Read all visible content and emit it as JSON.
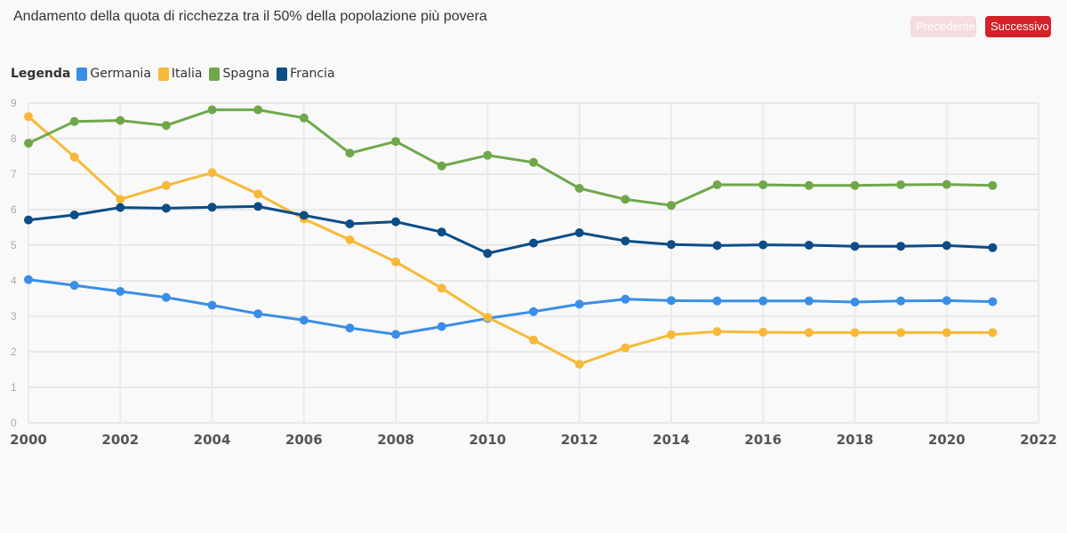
{
  "header": {
    "title": "Andamento della quota di ricchezza tra il 50% della popolazione più povera",
    "prev_label": "Precedente",
    "next_label": "Successivo"
  },
  "legend": {
    "title": "Legenda"
  },
  "colors": {
    "Germania": "#3a8ee6",
    "Italia": "#f8b938",
    "Spagna": "#6fa84b",
    "Francia": "#0a4d87",
    "accent": "#d3222a"
  },
  "chart_data": {
    "type": "line",
    "title": "Andamento della quota di ricchezza tra il 50% della popolazione più povera",
    "xlabel": "",
    "ylabel": "",
    "xlim": [
      2000,
      2022
    ],
    "ylim": [
      0,
      9
    ],
    "x_ticks": [
      2000,
      2002,
      2004,
      2006,
      2008,
      2010,
      2012,
      2014,
      2016,
      2018,
      2020,
      2022
    ],
    "y_ticks": [
      0,
      1,
      2,
      3,
      4,
      5,
      6,
      7,
      8,
      9
    ],
    "grid": true,
    "legend_position": "top-left",
    "x": [
      2000,
      2001,
      2002,
      2003,
      2004,
      2005,
      2006,
      2007,
      2008,
      2009,
      2010,
      2011,
      2012,
      2013,
      2014,
      2015,
      2016,
      2017,
      2018,
      2019,
      2020,
      2021
    ],
    "series": [
      {
        "name": "Germania",
        "values": [
          4.03,
          3.87,
          3.7,
          3.53,
          3.31,
          3.07,
          2.89,
          2.67,
          2.49,
          2.71,
          2.94,
          3.13,
          3.34,
          3.48,
          3.44,
          3.43,
          3.43,
          3.43,
          3.4,
          3.43,
          3.44,
          3.41
        ]
      },
      {
        "name": "Italia",
        "values": [
          8.62,
          7.48,
          6.29,
          6.68,
          7.04,
          6.44,
          5.74,
          5.15,
          4.53,
          3.79,
          2.97,
          2.33,
          1.65,
          2.11,
          2.48,
          2.57,
          2.55,
          2.54,
          2.54,
          2.54,
          2.54,
          2.54
        ]
      },
      {
        "name": "Spagna",
        "values": [
          7.87,
          8.48,
          8.51,
          8.37,
          8.81,
          8.81,
          8.58,
          7.59,
          7.92,
          7.23,
          7.53,
          7.33,
          6.6,
          6.29,
          6.12,
          6.7,
          6.7,
          6.68,
          6.68,
          6.7,
          6.71,
          6.68
        ]
      },
      {
        "name": "Francia",
        "values": [
          5.71,
          5.85,
          6.06,
          6.04,
          6.07,
          6.09,
          5.84,
          5.6,
          5.66,
          5.37,
          4.77,
          5.06,
          5.35,
          5.12,
          5.02,
          4.99,
          5.01,
          5.0,
          4.97,
          4.97,
          4.99,
          4.93
        ]
      }
    ]
  }
}
